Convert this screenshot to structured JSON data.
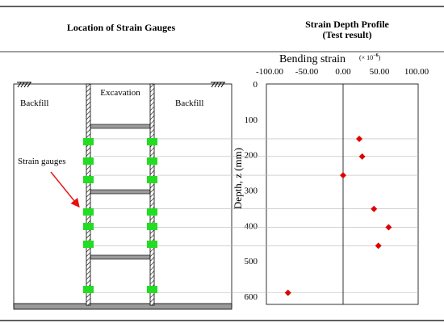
{
  "headers": {
    "left": "Location of Strain Gauges",
    "right_line1": "Strain Depth Profile",
    "right_line2": "(Test result)"
  },
  "diagram": {
    "excavation_label": "Excavation",
    "backfill_left_label": "Backfill",
    "backfill_right_label": "Backfill",
    "strain_gauges_label": "Strain gauges",
    "colors": {
      "gauge": "#22dd22",
      "strut": "#9a9a9a",
      "arrow": "#e81010",
      "marker": "#e00000"
    }
  },
  "chart_data": {
    "type": "scatter",
    "title": "Bending strain",
    "title_unit_prefix": "(× 10",
    "title_unit_exp": "−6",
    "title_unit_suffix": ")",
    "xlabel": "Bending strain",
    "ylabel": "Depth, z (mm)",
    "xlim": [
      -100,
      100
    ],
    "ylim": [
      0,
      600
    ],
    "y_inverted": true,
    "x_ticks": [
      "-100.00",
      "-50.00",
      "0.00",
      "50.00",
      "100.00"
    ],
    "y_ticks": [
      "0",
      "100",
      "200",
      "300",
      "400",
      "500",
      "600"
    ],
    "grid": false,
    "series": [
      {
        "points": [
          {
            "x": 22,
            "y": 155
          },
          {
            "x": 26,
            "y": 205
          },
          {
            "x": 0,
            "y": 258
          },
          {
            "x": 42,
            "y": 353
          },
          {
            "x": 62,
            "y": 405
          },
          {
            "x": 48,
            "y": 457
          },
          {
            "x": -75,
            "y": 590
          }
        ]
      }
    ]
  }
}
